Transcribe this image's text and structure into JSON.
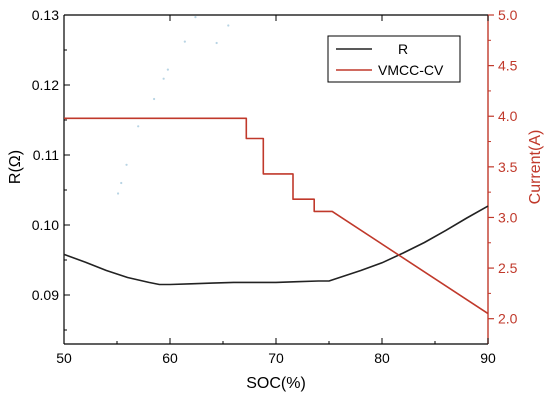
{
  "colors": {
    "frame": "#000000",
    "left_axis": "#000000",
    "right_axis": "#c0392b",
    "series_r": "#222222",
    "series_vmcc": "#c0392b"
  },
  "chart_data": {
    "type": "line",
    "title": "",
    "xlabel": "SOC(%)",
    "ylabel_left": "R(Ω)",
    "ylabel_right": "Current(A)",
    "xlim": [
      50,
      90
    ],
    "ylim_left": [
      0.083,
      0.13
    ],
    "ylim_right": [
      1.75,
      5.0
    ],
    "x_ticks": [
      "50",
      "60",
      "70",
      "80",
      "90"
    ],
    "y_left_ticks": [
      "0.09",
      "0.10",
      "0.11",
      "0.12",
      "0.13"
    ],
    "y_right_ticks": [
      "2.0",
      "2.5",
      "3.0",
      "3.5",
      "4.0",
      "4.5",
      "5.0"
    ],
    "grid": false,
    "legend_position": "top-right",
    "series": [
      {
        "name": "R",
        "axis": "left",
        "x": [
          50,
          52,
          54,
          56,
          58,
          59,
          60,
          62,
          64,
          66,
          68,
          70,
          72,
          74,
          75,
          76,
          78,
          80,
          82,
          84,
          86,
          88,
          90
        ],
        "y": [
          0.0958,
          0.0947,
          0.0935,
          0.0925,
          0.0918,
          0.0915,
          0.0915,
          0.0916,
          0.0917,
          0.0918,
          0.0918,
          0.0918,
          0.0919,
          0.092,
          0.092,
          0.0925,
          0.0935,
          0.0946,
          0.096,
          0.0975,
          0.0992,
          0.101,
          0.1027
        ]
      },
      {
        "name": "VMCC-CV",
        "axis": "right",
        "x": [
          50,
          67.2,
          67.2,
          68.8,
          68.8,
          71.6,
          71.6,
          73.6,
          73.6,
          75.3,
          90
        ],
        "y": [
          3.98,
          3.98,
          3.78,
          3.78,
          3.43,
          3.43,
          3.18,
          3.18,
          3.06,
          3.06,
          2.05
        ]
      }
    ],
    "legend": [
      {
        "label": "R",
        "series": "R"
      },
      {
        "label": "VMCC-CV",
        "series": "VMCC-CV"
      }
    ],
    "scatter_decoration": [
      [
        62.4,
        0.1297
      ],
      [
        61.4,
        0.1262
      ],
      [
        59.8,
        0.1222
      ],
      [
        59.4,
        0.1209
      ],
      [
        58.5,
        0.118
      ],
      [
        57.0,
        0.1141
      ],
      [
        55.9,
        0.1086
      ],
      [
        55.4,
        0.106
      ],
      [
        55.1,
        0.1045
      ],
      [
        64.4,
        0.126
      ],
      [
        65.5,
        0.1285
      ]
    ]
  }
}
